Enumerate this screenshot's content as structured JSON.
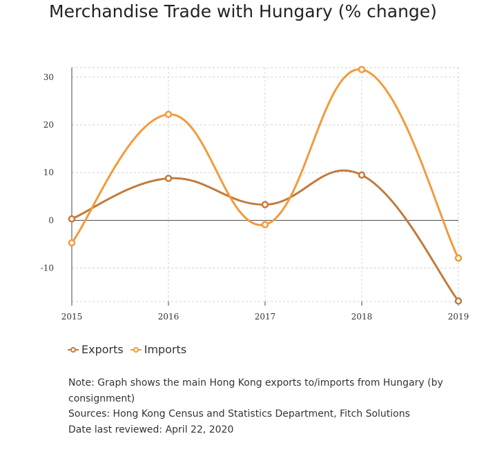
{
  "chart_data": {
    "type": "line",
    "title": "Merchandise Trade with Hungary (% change)",
    "x": [
      "2015",
      "2016",
      "2017",
      "2018",
      "2019"
    ],
    "series": [
      {
        "name": "Exports",
        "color": "#c27a3a",
        "values": [
          0.3,
          8.8,
          3.3,
          9.5,
          -16.9
        ]
      },
      {
        "name": "Imports",
        "color": "#f39a3a",
        "values": [
          -4.7,
          22.2,
          -0.9,
          31.6,
          -7.9
        ]
      }
    ],
    "yticks": [
      30,
      20,
      10,
      0,
      -10
    ],
    "ylim": [
      -17,
      32
    ],
    "xlabel": "",
    "ylabel": "",
    "grid": true,
    "legend": "bottom-left"
  },
  "notes": [
    "Note: Graph shows the main Hong Kong exports to/imports from Hungary (by consignment)",
    "Sources: Hong Kong Census and Statistics Department, Fitch Solutions",
    "Date last reviewed: April 22, 2020"
  ]
}
